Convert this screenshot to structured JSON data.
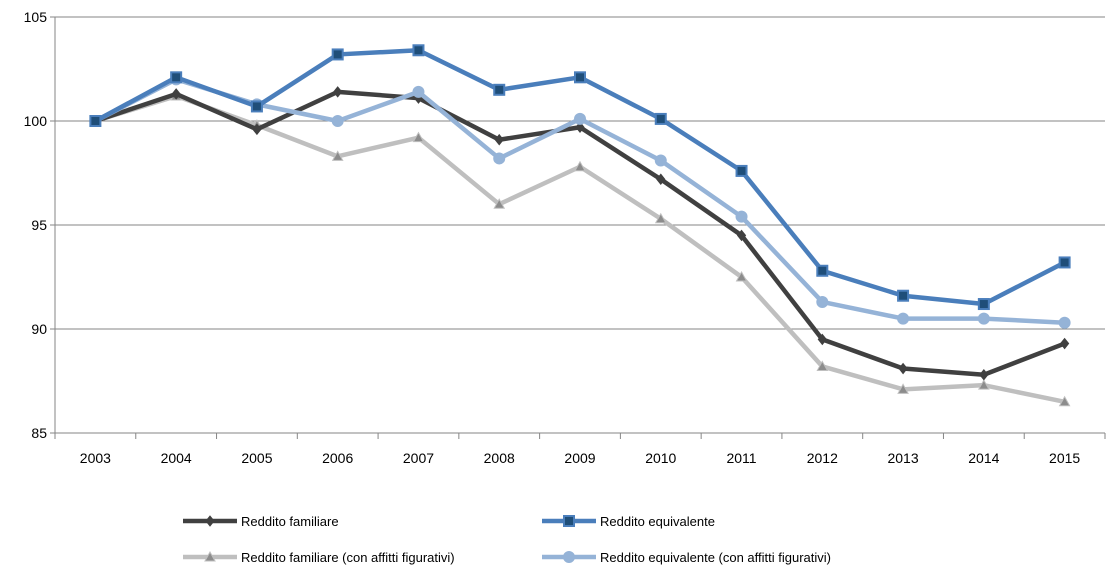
{
  "chart_data": {
    "type": "line",
    "title": "",
    "xlabel": "",
    "ylabel": "",
    "categories": [
      "2003",
      "2004",
      "2005",
      "2006",
      "2007",
      "2008",
      "2009",
      "2010",
      "2011",
      "2012",
      "2013",
      "2014",
      "2015"
    ],
    "ylim": [
      85,
      105
    ],
    "yticks": [
      85,
      90,
      95,
      100,
      105
    ],
    "grid": "horizontal",
    "legend_position": "bottom",
    "series": [
      {
        "name": "Reddito familiare",
        "color": "#404040",
        "marker": "diamond",
        "values": [
          100.0,
          101.3,
          99.6,
          101.4,
          101.1,
          99.1,
          99.7,
          97.2,
          94.5,
          89.5,
          88.1,
          87.8,
          89.3
        ]
      },
      {
        "name": "Reddito equivalente",
        "color": "#4a7ebb",
        "marker_fill": "#1f4e79",
        "marker": "square",
        "values": [
          100.0,
          102.1,
          100.7,
          103.2,
          103.4,
          101.5,
          102.1,
          100.1,
          97.6,
          92.8,
          91.6,
          91.2,
          93.2
        ]
      },
      {
        "name": "Reddito familiare (con affitti figurativi)",
        "color": "#bfbfbf",
        "marker_fill": "#8c8c8c",
        "marker": "triangle",
        "values": [
          100.0,
          101.2,
          99.8,
          98.3,
          99.2,
          96.0,
          97.8,
          95.3,
          92.5,
          88.2,
          87.1,
          87.3,
          86.5
        ]
      },
      {
        "name": "Reddito equivalente (con affitti figurativi)",
        "color": "#95b3d7",
        "marker": "circle",
        "values": [
          100.0,
          102.0,
          100.8,
          100.0,
          101.4,
          98.2,
          100.1,
          98.1,
          95.4,
          91.3,
          90.5,
          90.5,
          90.3
        ]
      }
    ]
  }
}
